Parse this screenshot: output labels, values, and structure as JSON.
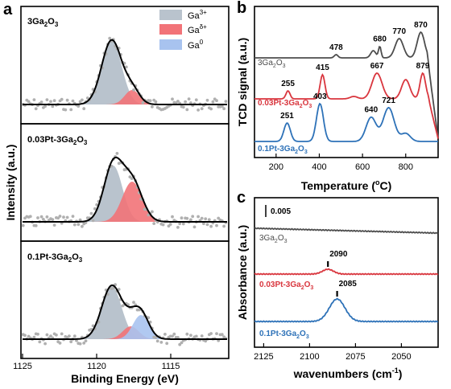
{
  "colors": {
    "ga3": "#b9c3cd",
    "gad": "#f27378",
    "ga0": "#a8c3ef",
    "fit": "#000000",
    "raw": "#b0b0b0",
    "s3ga": "#4d4d4d",
    "s003": "#d9363e",
    "s01": "#2e72b8"
  },
  "chart_data": [
    {
      "type": "line",
      "panel": "a",
      "xlabel": "Binding Energy (eV)",
      "ylabel": "Intensity (a.u.)",
      "xlim": [
        1125,
        1111
      ],
      "x_ticks": [
        "1125",
        "1120",
        "1115"
      ],
      "legend": {
        "placement": "top-right",
        "entries": [
          "Ga³⁺",
          "Ga^δ+",
          "Ga⁰"
        ]
      },
      "subpanels": [
        {
          "label": "3Ga₂O₃",
          "components": [
            {
              "name": "Ga³⁺",
              "center": 1118.9,
              "fwhm": 1.6,
              "height": 0.8
            },
            {
              "name": "Gaδ+",
              "center": 1117.5,
              "fwhm": 1.2,
              "height": 0.18
            }
          ]
        },
        {
          "label": "0.03Pt-3Ga₂O₃",
          "components": [
            {
              "name": "Ga³⁺",
              "center": 1118.8,
              "fwhm": 1.5,
              "height": 0.7
            },
            {
              "name": "Gaδ+",
              "center": 1117.5,
              "fwhm": 1.6,
              "height": 0.5
            }
          ]
        },
        {
          "label": "0.1Pt-3Ga₂O₃",
          "components": [
            {
              "name": "Ga³⁺",
              "center": 1118.9,
              "fwhm": 1.6,
              "height": 0.66
            },
            {
              "name": "Gaδ+",
              "center": 1117.6,
              "fwhm": 1.3,
              "height": 0.16
            },
            {
              "name": "Ga⁰",
              "center": 1116.9,
              "fwhm": 1.3,
              "height": 0.3
            }
          ]
        }
      ]
    },
    {
      "type": "line",
      "panel": "b",
      "xlabel": "Temperature (°C)",
      "ylabel": "TCD signal (a.u.)",
      "xlim": [
        100,
        950
      ],
      "x_ticks": [
        200,
        400,
        600,
        800
      ],
      "series": [
        {
          "name": "3Ga₂O₃",
          "peaks": [
            478,
            680,
            770,
            870
          ],
          "peak_labels": [
            "478",
            "680",
            "770",
            "870"
          ]
        },
        {
          "name": "0.03Pt-3Ga₂O₃",
          "peaks": [
            255,
            415,
            667,
            879
          ],
          "peak_labels": [
            "255",
            "415",
            "667",
            "879"
          ]
        },
        {
          "name": "0.1Pt-3Ga₂O₃",
          "peaks": [
            251,
            403,
            640,
            721
          ],
          "peak_labels": [
            "251",
            "403",
            "640",
            "721"
          ]
        }
      ]
    },
    {
      "type": "line",
      "panel": "c",
      "xlabel": "wavenumbers (cm⁻¹)",
      "ylabel": "Absorbance (a.u.)",
      "xlim": [
        2130,
        2030
      ],
      "x_ticks": [
        2125,
        2100,
        2075,
        2050
      ],
      "scale_bar": "0.005",
      "series": [
        {
          "name": "3Ga₂O₃",
          "peak": null
        },
        {
          "name": "0.03Pt-3Ga₂O₃",
          "peak": 2090,
          "peak_label": "2090"
        },
        {
          "name": "0.1Pt-3Ga₂O₃",
          "peak": 2085,
          "peak_label": "2085"
        }
      ]
    }
  ],
  "labels": {
    "panel_a": "a",
    "panel_b": "b",
    "panel_c": "c",
    "a_xlabel": "Binding Energy (eV)",
    "a_ylabel": "Intensity (a.u.)",
    "b_xlabel": "Temperature (",
    "b_xlabel_unit": "C)",
    "b_ylabel": "TCD signal (a.u.)",
    "c_xlabel": "wavenumbers (cm",
    "c_xlabel_unit": ")",
    "c_ylabel": "Absorbance (a.u.)",
    "scale_bar": "0.005",
    "leg": [
      "Ga",
      "Ga",
      "Ga"
    ],
    "leg_sup": [
      "3+",
      "δ+",
      "0"
    ]
  }
}
